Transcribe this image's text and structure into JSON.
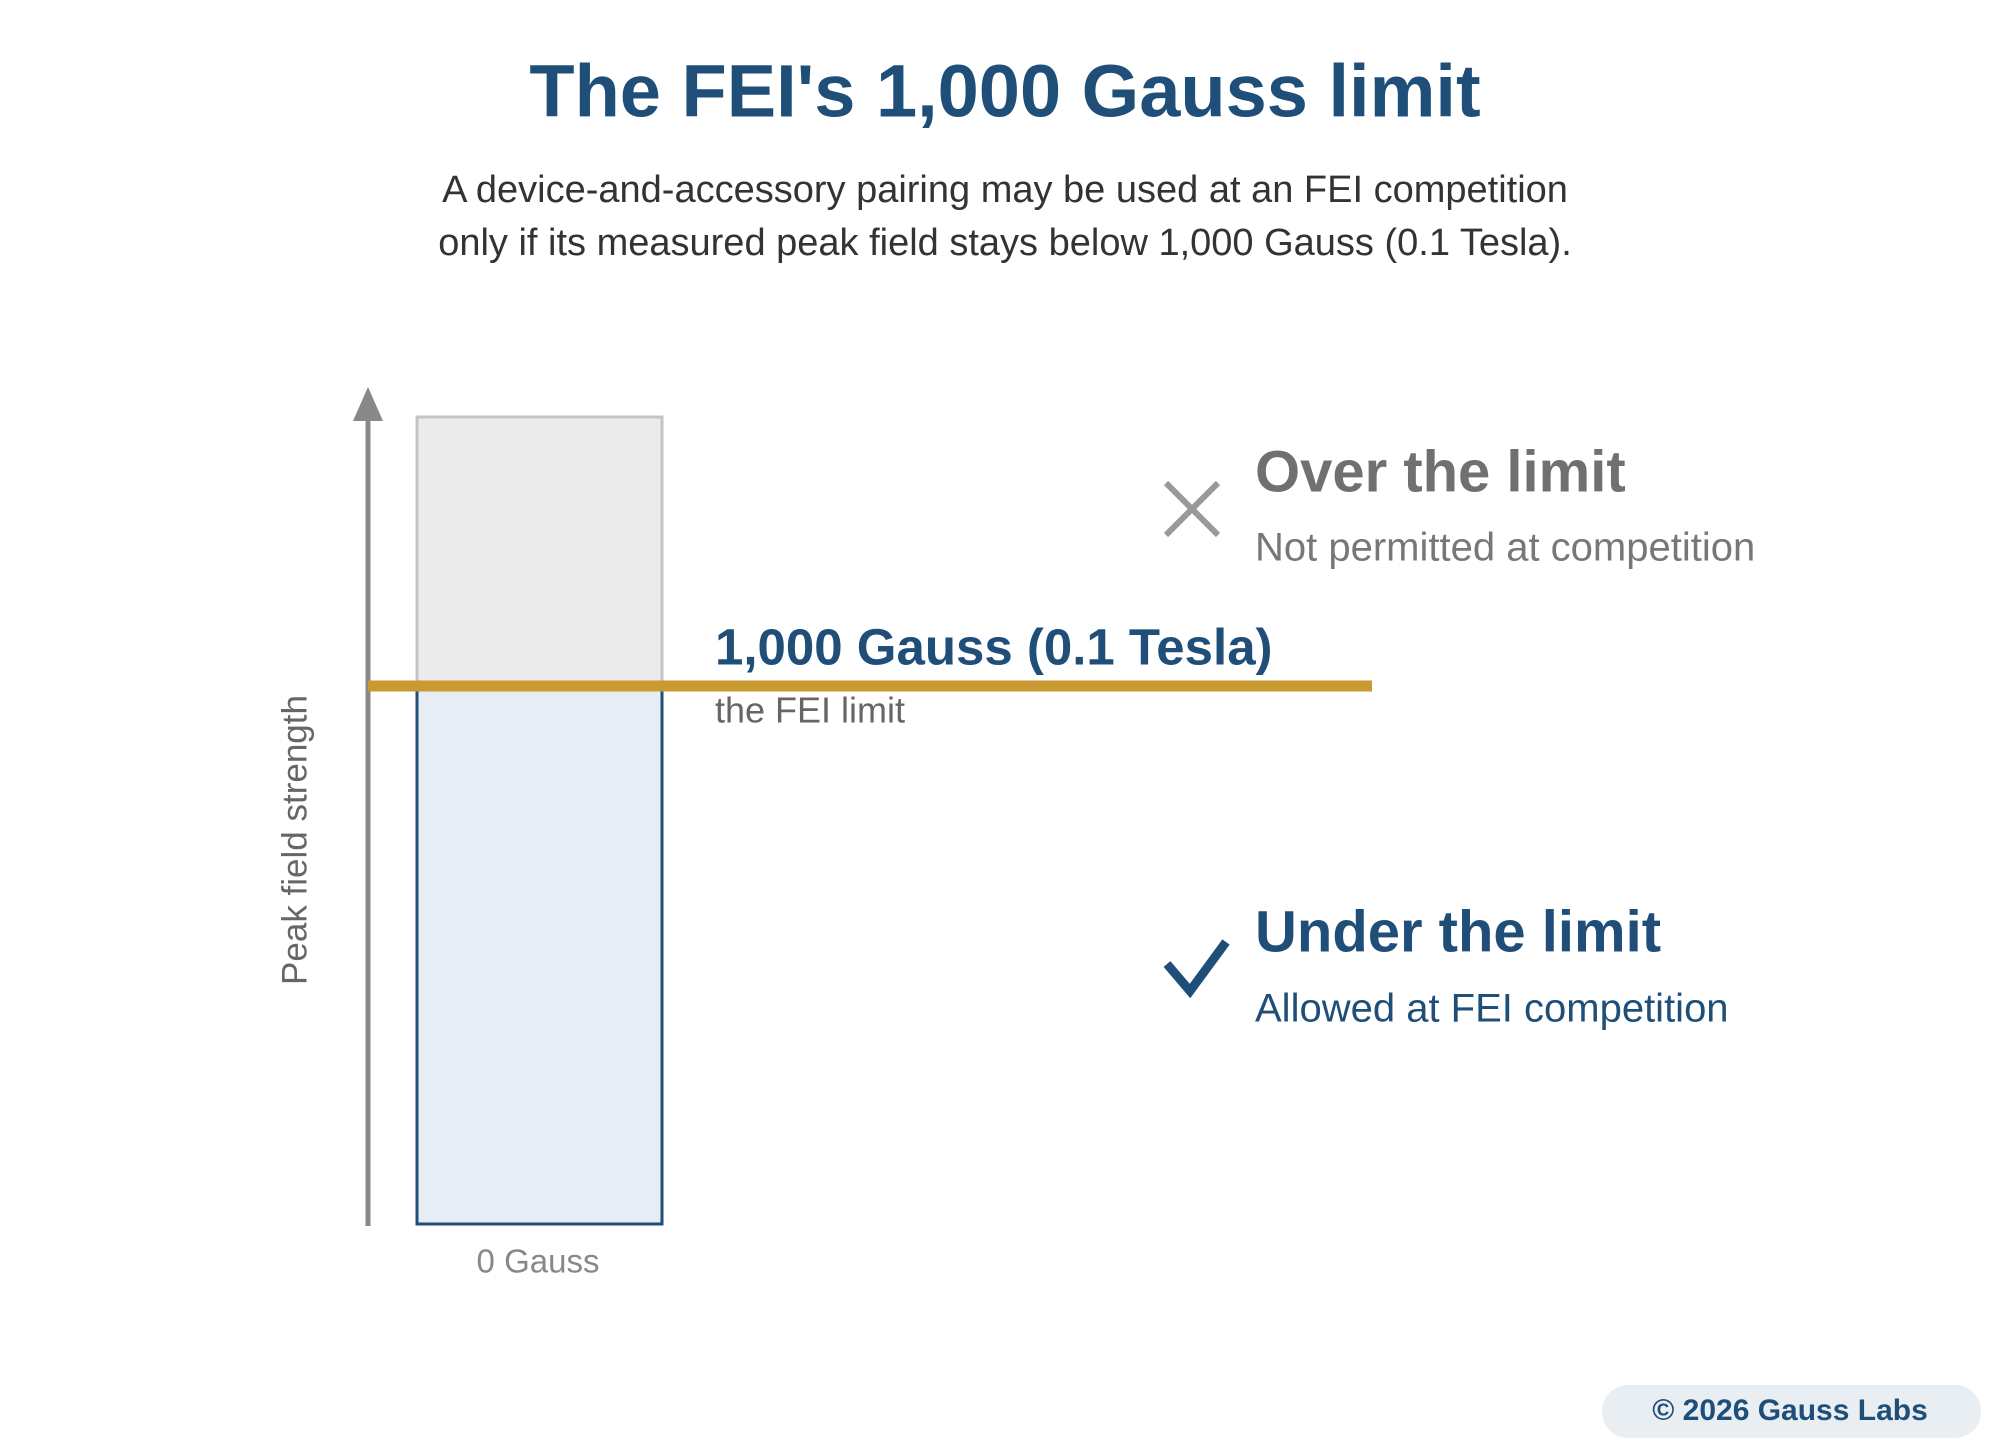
{
  "header": {
    "title": "The FEI's 1,000 Gauss limit",
    "subtitle_lines": [
      "A device-and-accessory pairing may be used at an FEI competition",
      "only if its measured peak field stays below 1,000 Gauss (0.1 Tesla)."
    ]
  },
  "axis": {
    "label": "Peak field strength",
    "baseline_label": "0 Gauss"
  },
  "limit": {
    "label": "1,000 Gauss (0.1 Tesla)",
    "sublabel": "the FEI limit"
  },
  "zones": {
    "over": {
      "title": "Over the limit",
      "description": "Not permitted at competition"
    },
    "under": {
      "title": "Under the limit",
      "description": "Allowed at FEI competition"
    }
  },
  "footer": {
    "credit": "© 2026 Gauss Labs"
  }
}
